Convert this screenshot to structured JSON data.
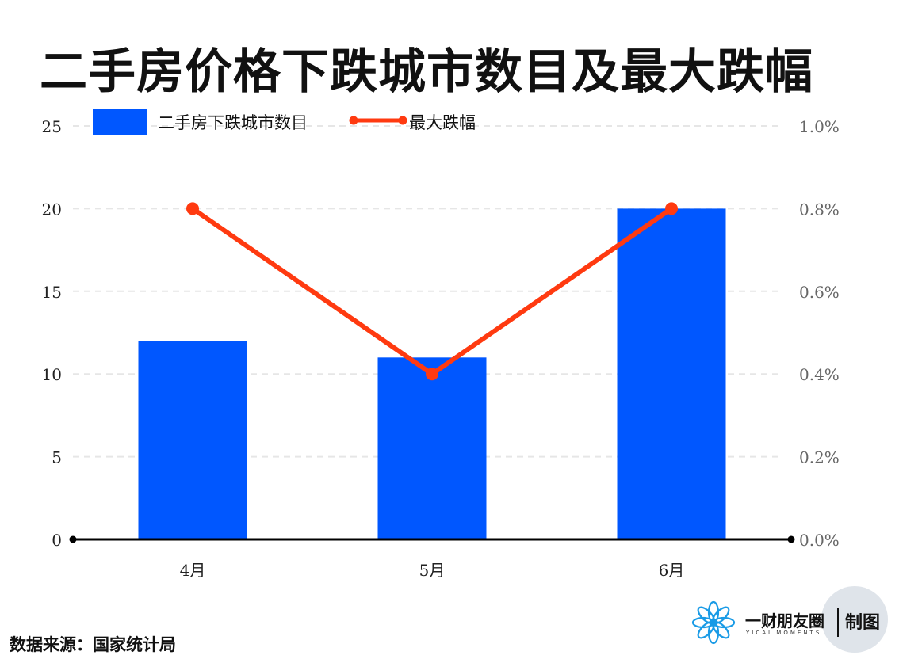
{
  "title": "二手房价格下跌城市数目及最大跌幅",
  "source": "数据来源：国家统计局",
  "brand": {
    "name": "一财朋友圈",
    "subtitle": "YICAI MOMENTS",
    "made": "制图"
  },
  "colors": {
    "bar": "#0057FF",
    "line": "#FF3A10",
    "grid": "#e6e6e6",
    "axis": "#000000"
  },
  "chart_data": {
    "type": "bar",
    "categories": [
      "4月",
      "5月",
      "6月"
    ],
    "series": [
      {
        "name": "二手房下跌城市数目",
        "type": "bar",
        "axis": "left",
        "values": [
          12,
          11,
          20
        ]
      },
      {
        "name": "最大跌幅",
        "type": "line",
        "axis": "right",
        "values": [
          0.8,
          0.4,
          0.8
        ]
      }
    ],
    "y_left": {
      "ylim": [
        0,
        25
      ],
      "ticks": [
        "0",
        "5",
        "10",
        "15",
        "20",
        "25"
      ]
    },
    "y_right": {
      "ylim": [
        0,
        1.0
      ],
      "ticks": [
        "0.0%",
        "0.2%",
        "0.4%",
        "0.6%",
        "0.8%",
        "1.0%"
      ]
    },
    "grid": true,
    "legend": "top"
  }
}
